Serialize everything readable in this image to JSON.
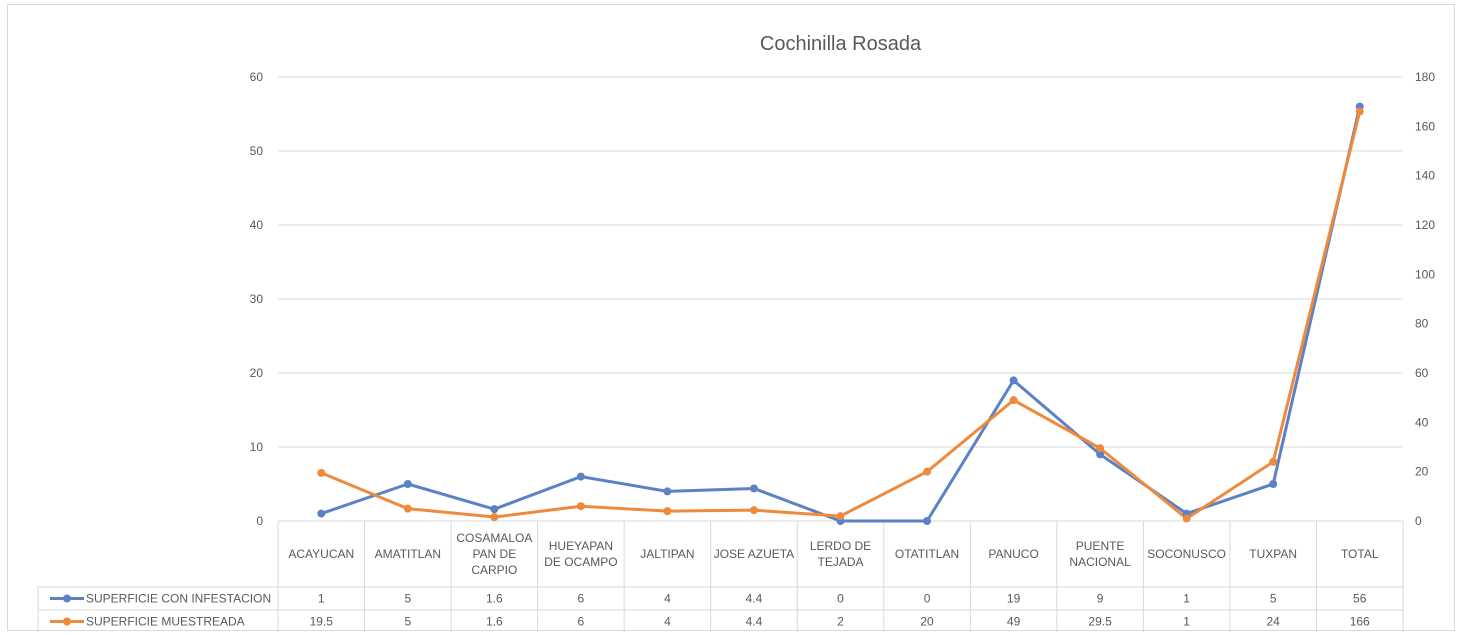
{
  "chart_data": {
    "type": "line",
    "title": "Cochinilla Rosada",
    "categories": [
      [
        "ACAYUCAN"
      ],
      [
        "AMATITLAN"
      ],
      [
        "COSAMALOA",
        "PAN DE",
        "CARPIO"
      ],
      [
        "HUEYAPAN",
        "DE OCAMPO"
      ],
      [
        "JALTIPAN"
      ],
      [
        "JOSE AZUETA"
      ],
      [
        "LERDO DE",
        "TEJADA"
      ],
      [
        "OTATITLAN"
      ],
      [
        "PANUCO"
      ],
      [
        "PUENTE",
        "NACIONAL"
      ],
      [
        "SOCONUSCO"
      ],
      [
        "TUXPAN"
      ],
      [
        "TOTAL"
      ]
    ],
    "series": [
      {
        "name": "SUPERFICIE CON INFESTACION",
        "axis": "left",
        "color": "#5B82C4",
        "values": [
          1,
          5,
          1.6,
          6,
          4,
          4.4,
          0,
          0,
          19,
          9,
          1,
          5,
          56
        ],
        "labels": [
          "1",
          "5",
          "1.6",
          "6",
          "4",
          "4.4",
          "0",
          "0",
          "19",
          "9",
          "1",
          "5",
          "56"
        ]
      },
      {
        "name": "SUPERFICIE MUESTREADA",
        "axis": "right",
        "color": "#EE8A3C",
        "values": [
          19.5,
          5,
          1.6,
          6,
          4,
          4.4,
          2,
          20,
          49,
          29.5,
          1,
          24,
          166
        ],
        "labels": [
          "19.5",
          "5",
          "1.6",
          "6",
          "4",
          "4.4",
          "2",
          "20",
          "49",
          "29.5",
          "1",
          "24",
          "166"
        ]
      }
    ],
    "y_left": {
      "min": 0,
      "max": 60,
      "step": 10,
      "ticks": [
        "0",
        "10",
        "20",
        "30",
        "40",
        "50",
        "60"
      ]
    },
    "y_right": {
      "min": 0,
      "max": 180,
      "step": 20,
      "ticks": [
        "0",
        "20",
        "40",
        "60",
        "80",
        "100",
        "120",
        "140",
        "160",
        "180"
      ]
    },
    "grid": true,
    "legend": "data-table"
  }
}
